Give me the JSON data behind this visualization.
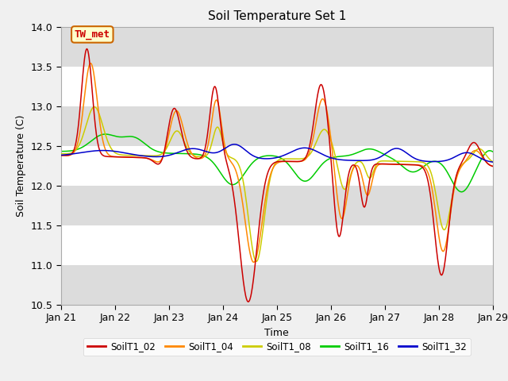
{
  "title": "Soil Temperature Set 1",
  "xlabel": "Time",
  "ylabel": "Soil Temperature (C)",
  "ylim": [
    10.5,
    14.0
  ],
  "x_tick_labels": [
    "Jan 21",
    "Jan 22",
    "Jan 23",
    "Jan 24",
    "Jan 25",
    "Jan 26",
    "Jan 27",
    "Jan 28",
    "Jan 29"
  ],
  "annotation_text": "TW_met",
  "series_colors": {
    "SoilT1_02": "#cc0000",
    "SoilT1_04": "#ff8800",
    "SoilT1_08": "#cccc00",
    "SoilT1_16": "#00cc00",
    "SoilT1_32": "#0000cc"
  },
  "legend_labels": [
    "SoilT1_02",
    "SoilT1_04",
    "SoilT1_08",
    "SoilT1_16",
    "SoilT1_32"
  ],
  "legend_colors": [
    "#cc0000",
    "#ff8800",
    "#cccc00",
    "#00cc00",
    "#0000cc"
  ],
  "fig_bg": "#f0f0f0",
  "plot_bg": "#e8e8e8",
  "band_color": "#dcdcdc",
  "title_fontsize": 11,
  "axis_fontsize": 9,
  "tick_fontsize": 9
}
